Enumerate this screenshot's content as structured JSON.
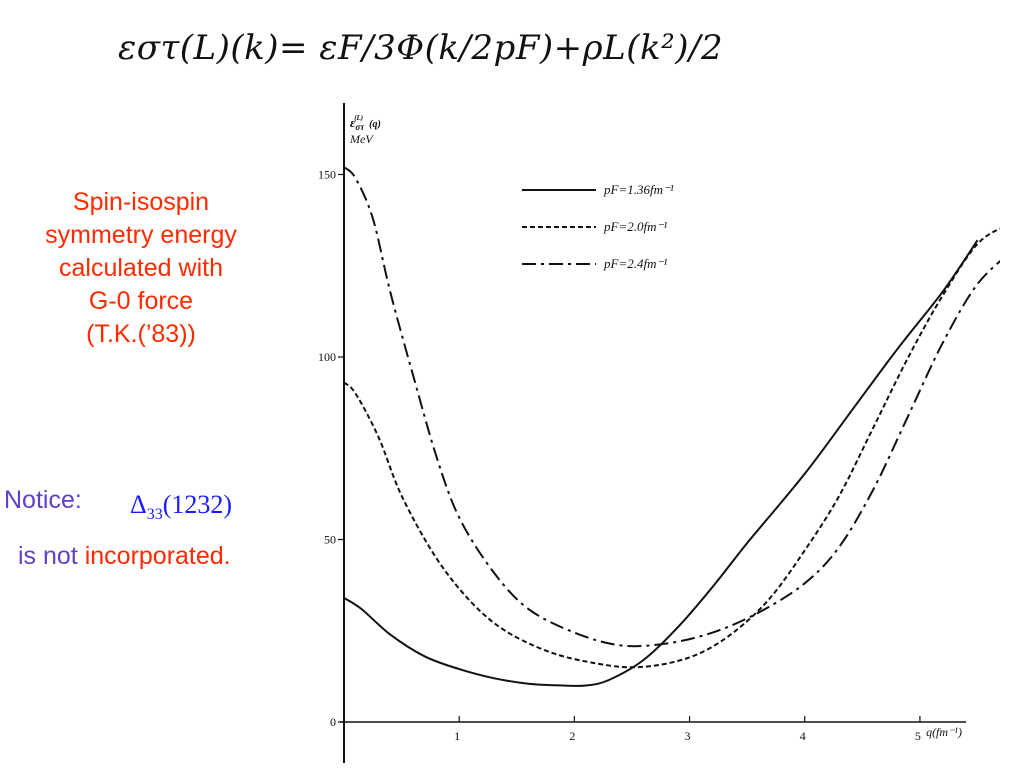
{
  "formula": "εστ(L)(k)= εF/3Φ(k/2pF)+ρL(k²)/2",
  "description": {
    "lines": [
      "Spin-isospin",
      "symmetry energy",
      "calculated with",
      "G-0 force",
      "(T.K.(’83))"
    ]
  },
  "notice": {
    "label": "Notice:",
    "delta_symbol": "Δ",
    "delta_subscript": "33",
    "delta_mass": "(1232)",
    "not": "is not ",
    "incorporated": "incorporated."
  },
  "colors": {
    "red_text": "#ff2a00",
    "purple_text": "#6040c8",
    "blue_text": "#1a1aff"
  },
  "chart_data": {
    "type": "line",
    "ylabel_symbol": "ε",
    "ylabel_sub": "στ",
    "ylabel_sup": "(L)",
    "ylabel_arg": "(q)",
    "yunit": "MeV",
    "xlabel": "q(fm⁻¹)",
    "xlim": [
      0,
      5.4
    ],
    "ylim": [
      0,
      160
    ],
    "yticks": [
      0,
      50,
      100,
      150
    ],
    "xticks": [
      1,
      2,
      3,
      4,
      5
    ],
    "series": [
      {
        "name": "pF=1.36fm⁻¹",
        "style": "solid",
        "points": [
          [
            0,
            34
          ],
          [
            0.15,
            31
          ],
          [
            0.4,
            24
          ],
          [
            0.7,
            18
          ],
          [
            1.0,
            14.5
          ],
          [
            1.3,
            12
          ],
          [
            1.6,
            10.5
          ],
          [
            1.9,
            10
          ],
          [
            2.1,
            10
          ],
          [
            2.3,
            11.5
          ],
          [
            2.6,
            17
          ],
          [
            2.9,
            26
          ],
          [
            3.2,
            37
          ],
          [
            3.5,
            49
          ],
          [
            4.0,
            68
          ],
          [
            4.4,
            85
          ],
          [
            4.8,
            102
          ],
          [
            5.2,
            118
          ],
          [
            5.5,
            132
          ]
        ]
      },
      {
        "name": "pF=2.0fm⁻¹",
        "style": "dashed",
        "points": [
          [
            0,
            93
          ],
          [
            0.1,
            90
          ],
          [
            0.3,
            78
          ],
          [
            0.5,
            62
          ],
          [
            0.8,
            45
          ],
          [
            1.1,
            33
          ],
          [
            1.4,
            25
          ],
          [
            1.8,
            19
          ],
          [
            2.2,
            16
          ],
          [
            2.5,
            15
          ],
          [
            2.8,
            16
          ],
          [
            3.1,
            19
          ],
          [
            3.4,
            25
          ],
          [
            3.7,
            34
          ],
          [
            4.0,
            47
          ],
          [
            4.3,
            62
          ],
          [
            4.6,
            81
          ],
          [
            4.9,
            100
          ],
          [
            5.2,
            117
          ],
          [
            5.5,
            131
          ],
          [
            5.75,
            136
          ]
        ]
      },
      {
        "name": "pF=2.4fm⁻¹",
        "style": "dashdot",
        "points": [
          [
            0,
            152
          ],
          [
            0.1,
            149
          ],
          [
            0.25,
            138
          ],
          [
            0.4,
            118
          ],
          [
            0.6,
            95
          ],
          [
            0.8,
            73
          ],
          [
            1.0,
            56
          ],
          [
            1.3,
            41
          ],
          [
            1.6,
            31
          ],
          [
            2.0,
            24.5
          ],
          [
            2.4,
            21
          ],
          [
            2.8,
            21.5
          ],
          [
            3.2,
            24.5
          ],
          [
            3.6,
            30
          ],
          [
            4.0,
            38
          ],
          [
            4.3,
            48
          ],
          [
            4.6,
            64
          ],
          [
            4.9,
            84
          ],
          [
            5.2,
            104
          ],
          [
            5.5,
            120
          ],
          [
            5.8,
            129
          ]
        ]
      }
    ]
  }
}
